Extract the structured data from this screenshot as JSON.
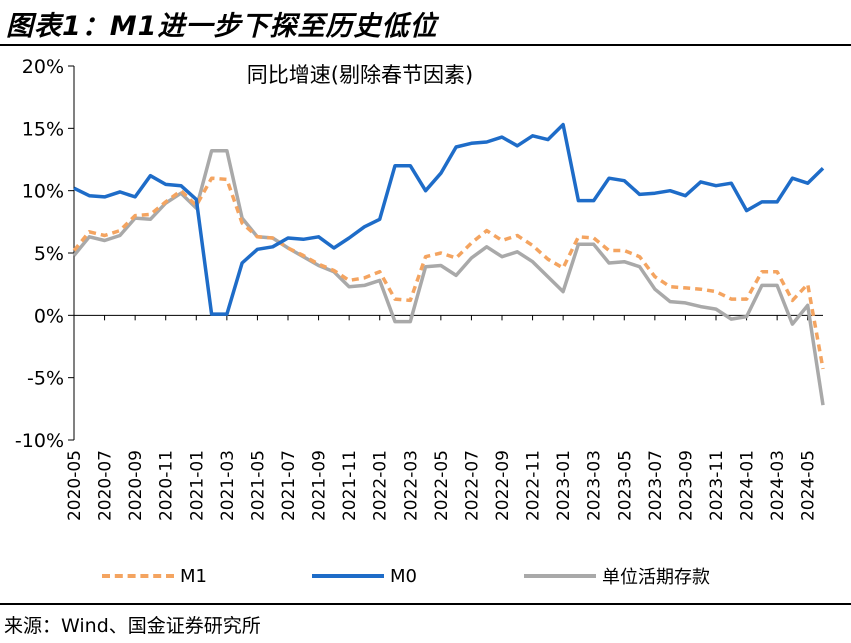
{
  "title": "图表1：M1进一步下探至历史低位",
  "source": "来源：Wind、国金证券研究所",
  "chart_data": {
    "type": "line",
    "annotation": "同比增速(剔除春节因素)",
    "ylim": [
      -10,
      20
    ],
    "yticks": [
      -10,
      -5,
      0,
      5,
      10,
      15,
      20
    ],
    "ytick_labels": [
      "-10%",
      "-5%",
      "0%",
      "5%",
      "10%",
      "15%",
      "20%"
    ],
    "x": [
      "2020-05",
      "2020-06",
      "2020-07",
      "2020-08",
      "2020-09",
      "2020-10",
      "2020-11",
      "2020-12",
      "2021-01",
      "2021-02",
      "2021-03",
      "2021-04",
      "2021-05",
      "2021-06",
      "2021-07",
      "2021-08",
      "2021-09",
      "2021-10",
      "2021-11",
      "2021-12",
      "2022-01",
      "2022-02",
      "2022-03",
      "2022-04",
      "2022-05",
      "2022-06",
      "2022-07",
      "2022-08",
      "2022-09",
      "2022-10",
      "2022-11",
      "2022-12",
      "2023-01",
      "2023-02",
      "2023-03",
      "2023-04",
      "2023-05",
      "2023-06",
      "2023-07",
      "2023-08",
      "2023-09",
      "2023-10",
      "2023-11",
      "2023-12",
      "2024-01",
      "2024-02",
      "2024-03",
      "2024-04",
      "2024-05",
      "2024-06"
    ],
    "xtick_labels": [
      "2020-05",
      "2020-07",
      "2020-09",
      "2020-11",
      "2021-01",
      "2021-03",
      "2021-05",
      "2021-07",
      "2021-09",
      "2021-11",
      "2022-01",
      "2022-03",
      "2022-05",
      "2022-07",
      "2022-09",
      "2022-11",
      "2023-01",
      "2023-03",
      "2023-05",
      "2023-07",
      "2023-09",
      "2023-11",
      "2024-01",
      "2024-03",
      "2024-05"
    ],
    "series": [
      {
        "name": "M1",
        "color": "#F4A460",
        "style": "dashed",
        "values": [
          5.2,
          6.7,
          6.4,
          6.8,
          8.0,
          8.1,
          9.1,
          10.0,
          8.8,
          11.0,
          10.9,
          7.4,
          6.3,
          6.2,
          5.4,
          4.8,
          4.1,
          3.6,
          2.8,
          3.0,
          3.5,
          1.3,
          1.2,
          4.7,
          5.0,
          4.6,
          5.8,
          6.8,
          6.0,
          6.4,
          5.6,
          4.5,
          3.8,
          6.3,
          6.2,
          5.2,
          5.2,
          4.7,
          3.1,
          2.3,
          2.2,
          2.1,
          1.9,
          1.3,
          1.3,
          3.5,
          3.5,
          1.2,
          2.5,
          -4.3
        ]
      },
      {
        "name": "M0",
        "color": "#1E6CC8",
        "style": "solid",
        "values": [
          10.2,
          9.6,
          9.5,
          9.9,
          9.5,
          11.2,
          10.5,
          10.4,
          9.3,
          0.1,
          0.1,
          4.2,
          5.3,
          5.5,
          6.2,
          6.1,
          6.3,
          5.4,
          6.2,
          7.1,
          7.7,
          12.0,
          12.0,
          10.0,
          11.4,
          13.5,
          13.8,
          13.9,
          14.3,
          13.6,
          14.4,
          14.1,
          15.3,
          9.2,
          9.2,
          11.0,
          10.8,
          9.7,
          9.8,
          10.0,
          9.6,
          10.7,
          10.4,
          10.6,
          8.4,
          9.1,
          9.1,
          11.0,
          10.6,
          11.8
        ]
      },
      {
        "name": "单位活期存款",
        "color": "#A9A9A9",
        "style": "solid",
        "values": [
          4.8,
          6.3,
          6.0,
          6.4,
          7.8,
          7.7,
          9.0,
          9.8,
          8.6,
          13.2,
          13.2,
          7.8,
          6.3,
          6.2,
          5.4,
          4.7,
          4.0,
          3.5,
          2.3,
          2.4,
          2.8,
          -0.5,
          -0.5,
          3.9,
          4.0,
          3.2,
          4.6,
          5.5,
          4.7,
          5.1,
          4.3,
          3.1,
          1.9,
          5.7,
          5.7,
          4.2,
          4.3,
          3.9,
          2.1,
          1.1,
          1.0,
          0.7,
          0.5,
          -0.3,
          -0.1,
          2.4,
          2.4,
          -0.7,
          0.8,
          -7.2
        ]
      }
    ]
  }
}
